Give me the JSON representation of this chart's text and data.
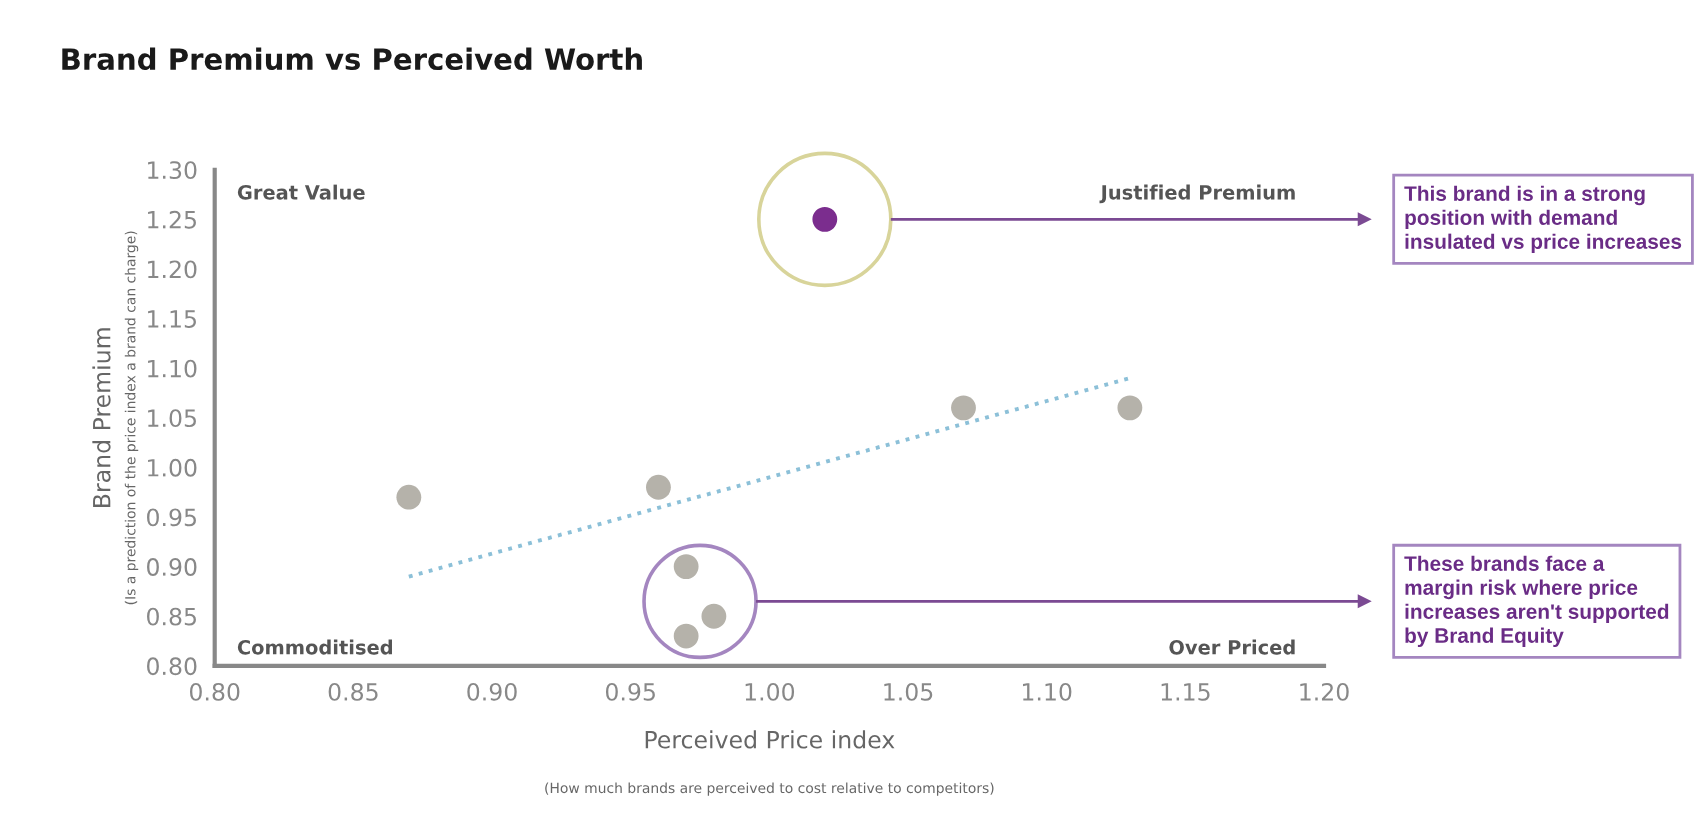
{
  "chart_data": {
    "type": "scatter",
    "title": "Brand Premium vs Perceived Worth",
    "xlabel": "Perceived Price index\n(How much brands are perceived to cost relative to competitors)",
    "ylabel": "Brand Premium\n(Is a prediction of the price index a brand can charge)",
    "series": [
      {
        "color": "#b5b2aa",
        "marker": "circle",
        "x": [
          0.87,
          0.96,
          0.97,
          0.98,
          0.97,
          1.07,
          1.13
        ],
        "values": [
          0.97,
          0.98,
          0.9,
          0.85,
          0.83,
          1.06,
          1.06
        ]
      },
      {
        "color": "#7b2d8e",
        "marker": "circle",
        "x": [
          1.02
        ],
        "values": [
          1.25
        ]
      },
      {
        "type": "line",
        "color": "#8cc0d8",
        "line_style": "dotted",
        "x": [
          0.87,
          1.13
        ],
        "values": [
          0.89,
          1.09
        ]
      }
    ],
    "xlim": [
      0.8,
      1.2
    ],
    "xticks": [
      {
        "value": 0.8,
        "label": "0.80"
      },
      {
        "value": 0.85,
        "label": "0.85"
      },
      {
        "value": 0.9,
        "label": "0.90"
      },
      {
        "value": 0.95,
        "label": "0.95"
      },
      {
        "value": 1.0,
        "label": "1.00"
      },
      {
        "value": 1.05,
        "label": "1.05"
      },
      {
        "value": 1.1,
        "label": "1.10"
      },
      {
        "value": 1.15,
        "label": "1.15"
      },
      {
        "value": 1.2,
        "label": "1.20"
      }
    ],
    "ylim": [
      0.8,
      1.3
    ],
    "yticks": [
      {
        "value": 0.8,
        "label": "0.80"
      },
      {
        "value": 0.85,
        "label": "0.85"
      },
      {
        "value": 0.9,
        "label": "0.90"
      },
      {
        "value": 0.95,
        "label": "0.95"
      },
      {
        "value": 1.0,
        "label": "1.00"
      },
      {
        "value": 1.05,
        "label": "1.05"
      },
      {
        "value": 1.1,
        "label": "1.10"
      },
      {
        "value": 1.15,
        "label": "1.15"
      },
      {
        "value": 1.2,
        "label": "1.20"
      },
      {
        "value": 1.25,
        "label": "1.25"
      },
      {
        "value": 1.3,
        "label": "1.30"
      }
    ],
    "annotations": [
      "Great Value",
      "Justified Premium",
      "Commoditised",
      "Over Priced",
      "This brand is in a strong\nposition with demand\ninsulated vs price increases",
      "These brands face a\nmargin risk where price\nincreases aren't supported\nby Brand Equity"
    ]
  }
}
